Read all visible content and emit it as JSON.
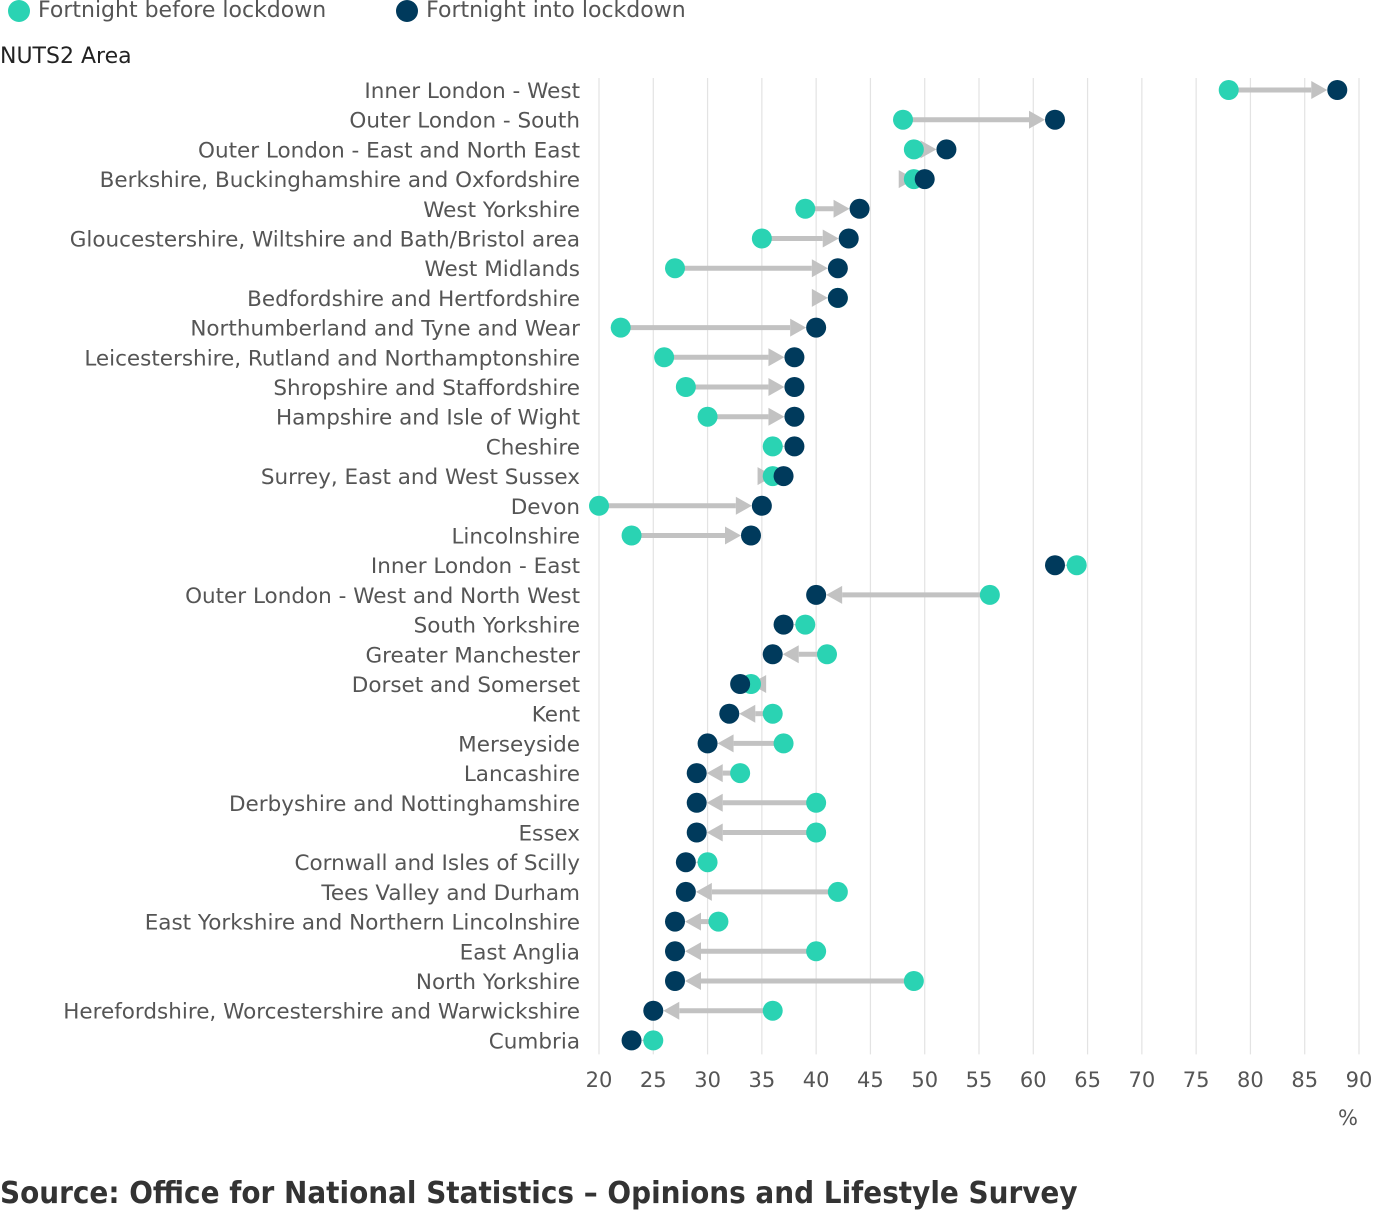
{
  "legend": {
    "before_label": "Fortnight before lockdown",
    "into_label": "Fortnight into lockdown"
  },
  "axis": {
    "y_title": "NUTS2 Area",
    "x_unit": "%"
  },
  "source": "Source: Office for National Statistics – Opinions and Lifestyle Survey",
  "colors": {
    "before": "#2ad3b3",
    "into": "#003a5c",
    "arrow": "#c2c2c2",
    "grid": "#e3e3e3",
    "label": "#555555"
  },
  "chart_data": {
    "type": "dumbbell",
    "ylabel": "NUTS2 Area",
    "xlabel": "%",
    "xlim": [
      20,
      90
    ],
    "x_ticks": [
      20,
      25,
      30,
      35,
      40,
      45,
      50,
      55,
      60,
      65,
      70,
      75,
      80,
      85,
      90
    ],
    "grid": "vertical",
    "legend_position": "top-left",
    "series": [
      {
        "name": "Fortnight before lockdown",
        "key": "before"
      },
      {
        "name": "Fortnight into lockdown",
        "key": "into"
      }
    ],
    "categories": [
      {
        "area": "Inner London - West",
        "before": 78,
        "into": 88
      },
      {
        "area": "Outer London - South",
        "before": 48,
        "into": 62
      },
      {
        "area": "Outer London - East and North East",
        "before": 49,
        "into": 52
      },
      {
        "area": "Berkshire, Buckinghamshire and Oxfordshire",
        "before": 49,
        "into": 50
      },
      {
        "area": "West Yorkshire",
        "before": 39,
        "into": 44
      },
      {
        "area": "Gloucestershire, Wiltshire and Bath/Bristol area",
        "before": 35,
        "into": 43
      },
      {
        "area": "West Midlands",
        "before": 27,
        "into": 42
      },
      {
        "area": "Bedfordshire and Hertfordshire",
        "before": 42,
        "into": 42
      },
      {
        "area": "Northumberland and Tyne and Wear",
        "before": 22,
        "into": 40
      },
      {
        "area": "Leicestershire, Rutland and Northamptonshire",
        "before": 26,
        "into": 38
      },
      {
        "area": "Shropshire and Staffordshire",
        "before": 28,
        "into": 38
      },
      {
        "area": "Hampshire and Isle of Wight",
        "before": 30,
        "into": 38
      },
      {
        "area": "Cheshire",
        "before": 36,
        "into": 38
      },
      {
        "area": "Surrey, East and West Sussex",
        "before": 36,
        "into": 37
      },
      {
        "area": "Devon",
        "before": 20,
        "into": 35
      },
      {
        "area": "Lincolnshire",
        "before": 23,
        "into": 34
      },
      {
        "area": "Inner London - East",
        "before": 64,
        "into": 62
      },
      {
        "area": "Outer London - West and North West",
        "before": 56,
        "into": 40
      },
      {
        "area": "South Yorkshire",
        "before": 39,
        "into": 37
      },
      {
        "area": "Greater Manchester",
        "before": 41,
        "into": 36
      },
      {
        "area": "Dorset and Somerset",
        "before": 34,
        "into": 33
      },
      {
        "area": "Kent",
        "before": 36,
        "into": 32
      },
      {
        "area": "Merseyside",
        "before": 37,
        "into": 30
      },
      {
        "area": "Lancashire",
        "before": 33,
        "into": 29
      },
      {
        "area": "Derbyshire and Nottinghamshire",
        "before": 40,
        "into": 29
      },
      {
        "area": "Essex",
        "before": 40,
        "into": 29
      },
      {
        "area": "Cornwall and Isles of Scilly",
        "before": 30,
        "into": 28
      },
      {
        "area": "Tees Valley and Durham",
        "before": 42,
        "into": 28
      },
      {
        "area": "East Yorkshire and Northern Lincolnshire",
        "before": 31,
        "into": 27
      },
      {
        "area": "East Anglia",
        "before": 40,
        "into": 27
      },
      {
        "area": "North Yorkshire",
        "before": 49,
        "into": 27
      },
      {
        "area": "Herefordshire, Worcestershire and Warwickshire",
        "before": 36,
        "into": 25
      },
      {
        "area": "Cumbria",
        "before": 25,
        "into": 23
      }
    ]
  }
}
